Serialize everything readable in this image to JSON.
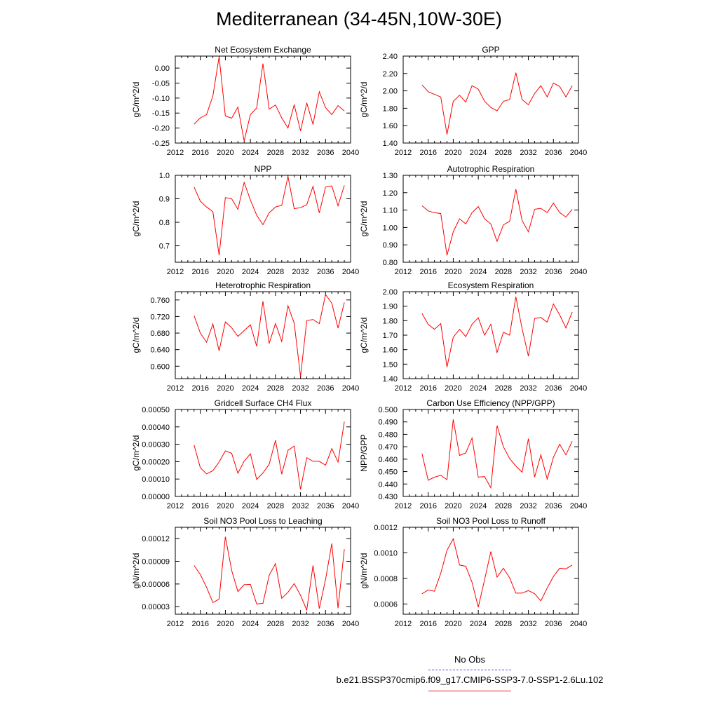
{
  "page": {
    "title": "Mediterranean (34-45N,10W-30E)"
  },
  "legend": {
    "obs_label": "No Obs",
    "model_label": "b.e21.BSSP370cmip6.f09_g17.CMIP6-SSP3-7.0-SSP1-2.6Lu.102",
    "obs_color": "#4b4bd6",
    "model_color": "#ff0000"
  },
  "chart_data": [
    {
      "type": "line",
      "title": "Net Ecosystem Exchange",
      "xlabel": "",
      "ylabel": "gC/m^2/d",
      "xlim": [
        2012,
        2040
      ],
      "ylim": [
        -0.25,
        0.04
      ],
      "xticks": [
        "2012",
        "2016",
        "2020",
        "2024",
        "2028",
        "2032",
        "2036",
        "2040"
      ],
      "yticks": [
        "0.00",
        "-0.05",
        "-0.10",
        "-0.15",
        "-0.20",
        "-0.25"
      ],
      "grid": false,
      "x": [
        2015,
        2016,
        2017,
        2018,
        2019,
        2020,
        2021,
        2022,
        2023,
        2024,
        2025,
        2026,
        2027,
        2028,
        2029,
        2030,
        2031,
        2032,
        2033,
        2034,
        2035,
        2036,
        2037,
        2038,
        2039
      ],
      "values": [
        -0.187,
        -0.166,
        -0.155,
        -0.093,
        0.038,
        -0.16,
        -0.167,
        -0.13,
        -0.243,
        -0.155,
        -0.133,
        0.015,
        -0.137,
        -0.123,
        -0.166,
        -0.2,
        -0.122,
        -0.21,
        -0.116,
        -0.188,
        -0.079,
        -0.132,
        -0.155,
        -0.125,
        -0.143
      ]
    },
    {
      "type": "line",
      "title": "GPP",
      "xlabel": "",
      "ylabel": "gC/m^2/d",
      "xlim": [
        2012,
        2040
      ],
      "ylim": [
        1.4,
        2.4
      ],
      "xticks": [
        "2012",
        "2016",
        "2020",
        "2024",
        "2028",
        "2032",
        "2036",
        "2040"
      ],
      "yticks": [
        "2.40",
        "2.20",
        "2.00",
        "1.80",
        "1.60",
        "1.40"
      ],
      "grid": false,
      "x": [
        2015,
        2016,
        2017,
        2018,
        2019,
        2020,
        2021,
        2022,
        2023,
        2024,
        2025,
        2026,
        2027,
        2028,
        2029,
        2030,
        2031,
        2032,
        2033,
        2034,
        2035,
        2036,
        2037,
        2038,
        2039
      ],
      "values": [
        2.07,
        1.99,
        1.96,
        1.93,
        1.5,
        1.88,
        1.95,
        1.87,
        2.06,
        2.02,
        1.88,
        1.81,
        1.77,
        1.88,
        1.9,
        2.21,
        1.9,
        1.84,
        1.97,
        2.06,
        1.93,
        2.09,
        2.05,
        1.93,
        2.06
      ]
    },
    {
      "type": "line",
      "title": "NPP",
      "xlabel": "",
      "ylabel": "gC/m^2/d",
      "xlim": [
        2012,
        2040
      ],
      "ylim": [
        0.63,
        1.0
      ],
      "xticks": [
        "2012",
        "2016",
        "2020",
        "2024",
        "2028",
        "2032",
        "2036",
        "2040"
      ],
      "yticks": [
        "1.0",
        "0.9",
        "0.8",
        "0.7"
      ],
      "grid": false,
      "x": [
        2015,
        2016,
        2017,
        2018,
        2019,
        2020,
        2021,
        2022,
        2023,
        2024,
        2025,
        2026,
        2027,
        2028,
        2029,
        2030,
        2031,
        2032,
        2033,
        2034,
        2035,
        2036,
        2037,
        2038,
        2039
      ],
      "values": [
        0.95,
        0.89,
        0.865,
        0.845,
        0.66,
        0.905,
        0.9,
        0.855,
        0.97,
        0.895,
        0.83,
        0.79,
        0.84,
        0.865,
        0.872,
        0.995,
        0.858,
        0.862,
        0.875,
        0.953,
        0.84,
        0.95,
        0.955,
        0.87,
        0.957
      ]
    },
    {
      "type": "line",
      "title": "Autotrophic Respiration",
      "xlabel": "",
      "ylabel": "gC/m^2/d",
      "xlim": [
        2012,
        2040
      ],
      "ylim": [
        0.8,
        1.3
      ],
      "xticks": [
        "2012",
        "2016",
        "2020",
        "2024",
        "2028",
        "2032",
        "2036",
        "2040"
      ],
      "yticks": [
        "1.30",
        "1.20",
        "1.10",
        "1.00",
        "0.90",
        "0.80"
      ],
      "grid": false,
      "x": [
        2015,
        2016,
        2017,
        2018,
        2019,
        2020,
        2021,
        2022,
        2023,
        2024,
        2025,
        2026,
        2027,
        2028,
        2029,
        2030,
        2031,
        2032,
        2033,
        2034,
        2035,
        2036,
        2037,
        2038,
        2039
      ],
      "values": [
        1.125,
        1.095,
        1.085,
        1.08,
        0.84,
        0.975,
        1.05,
        1.02,
        1.085,
        1.12,
        1.05,
        1.02,
        0.92,
        1.015,
        1.035,
        1.22,
        1.04,
        0.975,
        1.105,
        1.11,
        1.085,
        1.14,
        1.085,
        1.06,
        1.105
      ]
    },
    {
      "type": "line",
      "title": "Heterotrophic Respiration",
      "xlabel": "",
      "ylabel": "gC/m^2/d",
      "xlim": [
        2012,
        2040
      ],
      "ylim": [
        0.57,
        0.78
      ],
      "xticks": [
        "2012",
        "2016",
        "2020",
        "2024",
        "2028",
        "2032",
        "2036",
        "2040"
      ],
      "yticks": [
        "0.760",
        "0.720",
        "0.680",
        "0.640",
        "0.600"
      ],
      "grid": false,
      "x": [
        2015,
        2016,
        2017,
        2018,
        2019,
        2020,
        2021,
        2022,
        2023,
        2024,
        2025,
        2026,
        2027,
        2028,
        2029,
        2030,
        2031,
        2032,
        2033,
        2034,
        2035,
        2036,
        2037,
        2038,
        2039
      ],
      "values": [
        0.722,
        0.68,
        0.658,
        0.702,
        0.637,
        0.707,
        0.693,
        0.672,
        0.686,
        0.7,
        0.648,
        0.757,
        0.655,
        0.703,
        0.66,
        0.746,
        0.704,
        0.575,
        0.71,
        0.713,
        0.703,
        0.773,
        0.752,
        0.692,
        0.754
      ]
    },
    {
      "type": "line",
      "title": "Ecosystem Respiration",
      "xlabel": "",
      "ylabel": "gC/m^2/d",
      "xlim": [
        2012,
        2040
      ],
      "ylim": [
        1.4,
        2.0
      ],
      "xticks": [
        "2012",
        "2016",
        "2020",
        "2024",
        "2028",
        "2032",
        "2036",
        "2040"
      ],
      "yticks": [
        "2.00",
        "1.90",
        "1.80",
        "1.70",
        "1.60",
        "1.50",
        "1.40"
      ],
      "grid": false,
      "x": [
        2015,
        2016,
        2017,
        2018,
        2019,
        2020,
        2021,
        2022,
        2023,
        2024,
        2025,
        2026,
        2027,
        2028,
        2029,
        2030,
        2031,
        2032,
        2033,
        2034,
        2035,
        2036,
        2037,
        2038,
        2039
      ],
      "values": [
        1.85,
        1.775,
        1.74,
        1.78,
        1.48,
        1.685,
        1.74,
        1.69,
        1.775,
        1.82,
        1.7,
        1.775,
        1.58,
        1.72,
        1.7,
        1.965,
        1.745,
        1.555,
        1.815,
        1.822,
        1.79,
        1.915,
        1.84,
        1.75,
        1.86
      ]
    },
    {
      "type": "line",
      "title": "Gridcell Surface CH4 Flux",
      "xlabel": "",
      "ylabel": "gC/m^2/d",
      "xlim": [
        2012,
        2040
      ],
      "ylim": [
        0.0,
        0.0005
      ],
      "xticks": [
        "2012",
        "2016",
        "2020",
        "2024",
        "2028",
        "2032",
        "2036",
        "2040"
      ],
      "yticks": [
        "0.00050",
        "0.00040",
        "0.00030",
        "0.00020",
        "0.00010",
        "0.00000"
      ],
      "grid": false,
      "x": [
        2015,
        2016,
        2017,
        2018,
        2019,
        2020,
        2021,
        2022,
        2023,
        2024,
        2025,
        2026,
        2027,
        2028,
        2029,
        2030,
        2031,
        2032,
        2033,
        2034,
        2035,
        2036,
        2037,
        2038,
        2039
      ],
      "values": [
        0.000295,
        0.000165,
        0.00013,
        0.000148,
        0.000198,
        0.000262,
        0.000248,
        0.000133,
        0.000203,
        0.000245,
        9.7e-05,
        0.000135,
        0.000185,
        0.000323,
        0.000128,
        0.000265,
        0.00029,
        4e-05,
        0.000223,
        0.000202,
        0.000202,
        0.00018,
        0.000275,
        0.000198,
        0.00043
      ]
    },
    {
      "type": "line",
      "title": "Carbon Use Efficiency (NPP/GPP)",
      "xlabel": "",
      "ylabel": "NPP/GPP",
      "xlim": [
        2012,
        2040
      ],
      "ylim": [
        0.43,
        0.5
      ],
      "xticks": [
        "2012",
        "2016",
        "2020",
        "2024",
        "2028",
        "2032",
        "2036",
        "2040"
      ],
      "yticks": [
        "0.500",
        "0.490",
        "0.480",
        "0.470",
        "0.460",
        "0.450",
        "0.440",
        "0.430"
      ],
      "grid": false,
      "x": [
        2015,
        2016,
        2017,
        2018,
        2019,
        2020,
        2021,
        2022,
        2023,
        2024,
        2025,
        2026,
        2027,
        2028,
        2029,
        2030,
        2031,
        2032,
        2033,
        2034,
        2035,
        2036,
        2037,
        2038,
        2039
      ],
      "values": [
        0.4645,
        0.443,
        0.4455,
        0.447,
        0.4435,
        0.492,
        0.463,
        0.465,
        0.477,
        0.4455,
        0.446,
        0.437,
        0.487,
        0.47,
        0.4605,
        0.4545,
        0.4495,
        0.4765,
        0.4455,
        0.4635,
        0.444,
        0.4615,
        0.472,
        0.4635,
        0.4745
      ]
    },
    {
      "type": "line",
      "title": "Soil NO3 Pool Loss to Leaching",
      "xlabel": "",
      "ylabel": "gN/m^2/d",
      "xlim": [
        2012,
        2040
      ],
      "ylim": [
        2e-05,
        0.000135
      ],
      "xticks": [
        "2012",
        "2016",
        "2020",
        "2024",
        "2028",
        "2032",
        "2036",
        "2040"
      ],
      "yticks": [
        "0.00012",
        "0.00009",
        "0.00006",
        "0.00003"
      ],
      "grid": false,
      "x": [
        2015,
        2016,
        2017,
        2018,
        2019,
        2020,
        2021,
        2022,
        2023,
        2024,
        2025,
        2026,
        2027,
        2028,
        2029,
        2030,
        2031,
        2032,
        2033,
        2034,
        2035,
        2036,
        2037,
        2038,
        2039
      ],
      "values": [
        8.45e-05,
        7.25e-05,
        5.55e-05,
        3.55e-05,
        4e-05,
        0.0001225,
        7.8e-05,
        5e-05,
        5.9e-05,
        5.95e-05,
        3.35e-05,
        3.45e-05,
        7.15e-05,
        8.7e-05,
        4.1e-05,
        4.9e-05,
        6.05e-05,
        4.5e-05,
        2.55e-05,
        8.45e-05,
        2.75e-05,
        6.6e-05,
        0.0001135,
        2.8e-05,
        0.000106
      ]
    },
    {
      "type": "line",
      "title": "Soil NO3 Pool Loss to Runoff",
      "xlabel": "",
      "ylabel": "gN/m^2/d",
      "xlim": [
        2012,
        2040
      ],
      "ylim": [
        0.00052,
        0.0012
      ],
      "xticks": [
        "2012",
        "2016",
        "2020",
        "2024",
        "2028",
        "2032",
        "2036",
        "2040"
      ],
      "yticks": [
        "0.0012",
        "0.0010",
        "0.0008",
        "0.0006"
      ],
      "grid": false,
      "x": [
        2015,
        2016,
        2017,
        2018,
        2019,
        2020,
        2021,
        2022,
        2023,
        2024,
        2025,
        2026,
        2027,
        2028,
        2029,
        2030,
        2031,
        2032,
        2033,
        2034,
        2035,
        2036,
        2037,
        2038,
        2039
      ],
      "values": [
        0.00068,
        0.00071,
        0.0007,
        0.00084,
        0.00102,
        0.00111,
        0.000905,
        0.000895,
        0.00077,
        0.000575,
        0.00079,
        0.00101,
        0.00081,
        0.00088,
        0.000805,
        0.000685,
        0.000685,
        0.000705,
        0.00068,
        0.000625,
        0.000725,
        0.000815,
        0.00088,
        0.000875,
        0.000905
      ]
    }
  ]
}
